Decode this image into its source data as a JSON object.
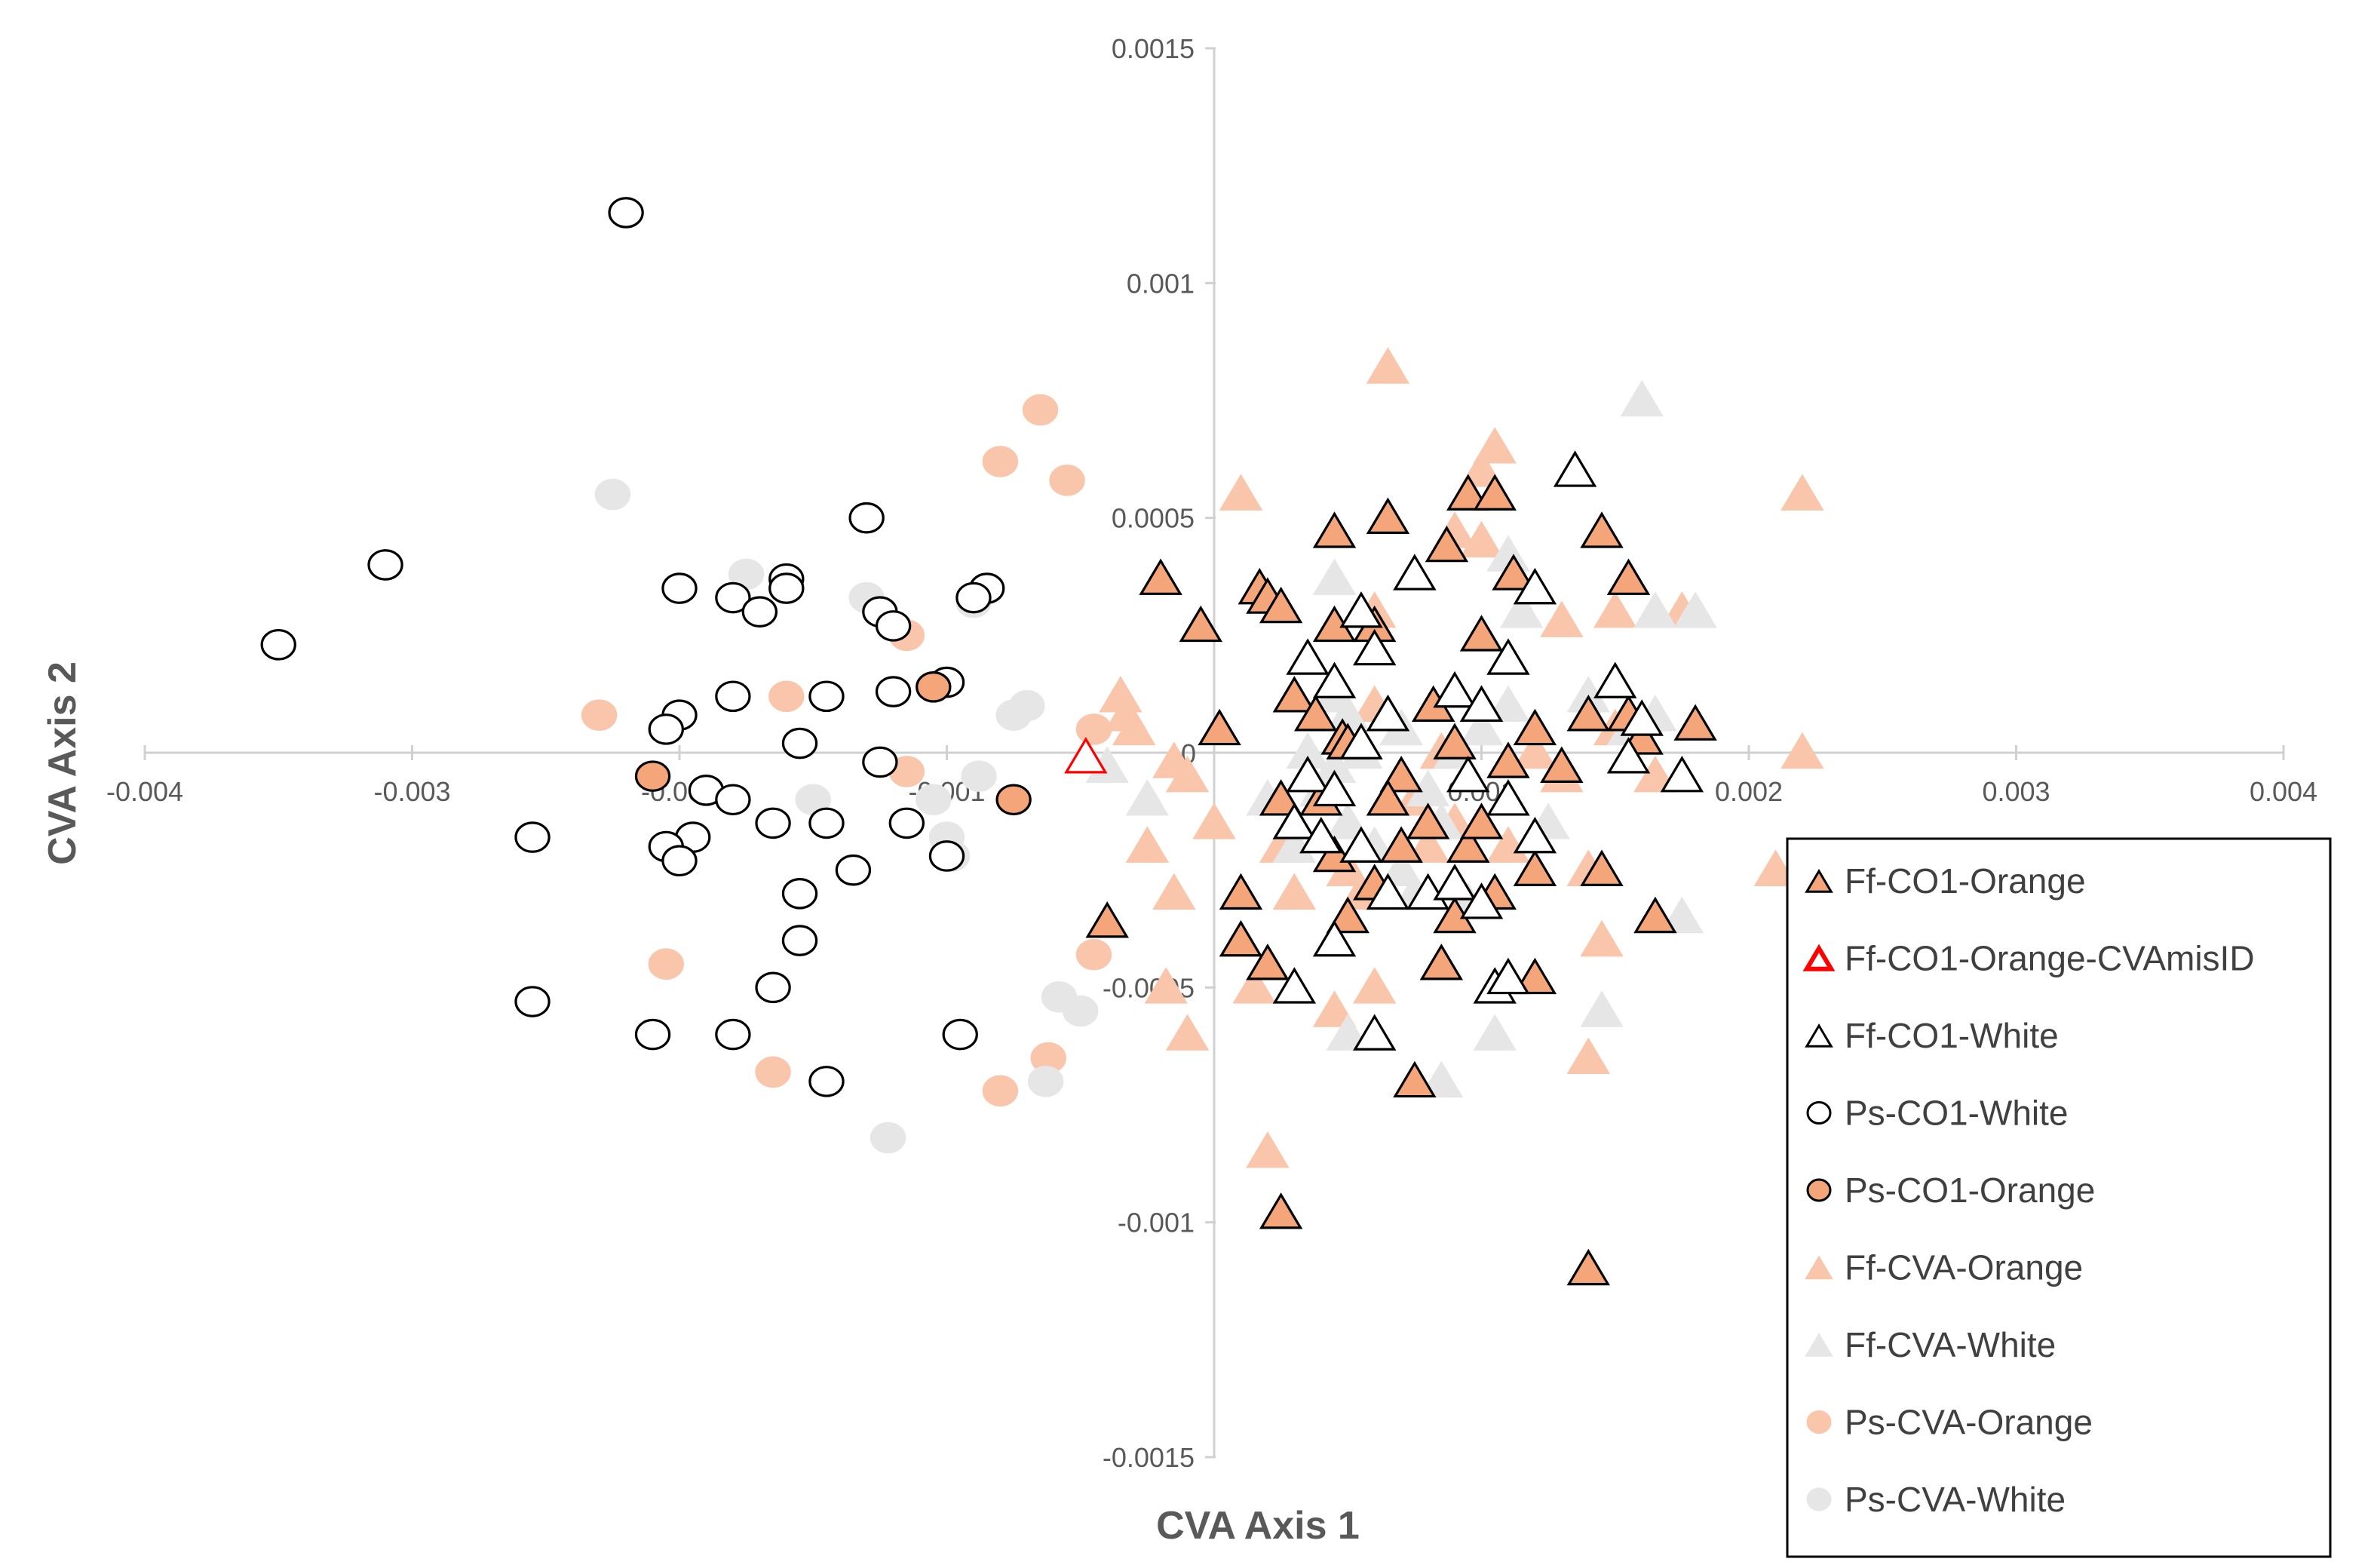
{
  "chart_data": {
    "type": "scatter",
    "title": "",
    "xlabel": "CVA Axis 1",
    "ylabel": "CVA Axis 2",
    "xlim": [
      -0.004,
      0.004
    ],
    "ylim": [
      -0.0015,
      0.0015
    ],
    "grid": false,
    "legend_position": "bottom-right",
    "xticks": [
      {
        "value": -0.004,
        "label": "-0.004"
      },
      {
        "value": -0.003,
        "label": "-0.003"
      },
      {
        "value": -0.002,
        "label": "-0.002"
      },
      {
        "value": -0.001,
        "label": "-0.001"
      },
      {
        "value": 0.001,
        "label": "0.001"
      },
      {
        "value": 0.002,
        "label": "0.002"
      },
      {
        "value": 0.003,
        "label": "0.003"
      },
      {
        "value": 0.004,
        "label": "0.004"
      }
    ],
    "yticks": [
      {
        "value": 0.0015,
        "label": "0.0015"
      },
      {
        "value": 0.001,
        "label": "0.001"
      },
      {
        "value": 0.0005,
        "label": "0.0005"
      },
      {
        "value": -0.0005,
        "label": "-0.0005"
      },
      {
        "value": -0.001,
        "label": "-0.001"
      },
      {
        "value": -0.0015,
        "label": "-0.0015"
      }
    ],
    "origin_label": "0",
    "series": [
      {
        "name": "Ff-CO1-Orange",
        "marker": "triangle",
        "fill": "#f4a67a",
        "stroke": "#000000",
        "points": [
          [
            -0.0002,
            0.00037
          ],
          [
            -5e-05,
            0.00027
          ],
          [
            2e-05,
            5e-05
          ],
          [
            0.00017,
            0.00035
          ],
          [
            0.0002,
            0.00033
          ],
          [
            0.00025,
            0.00031
          ],
          [
            0.00045,
            0.00047
          ],
          [
            0.00045,
            0.00027
          ],
          [
            0.0006,
            0.00027
          ],
          [
            0.00065,
            0.0005
          ],
          [
            0.00087,
            0.00044
          ],
          [
            0.00095,
            0.00055
          ],
          [
            0.00105,
            0.00055
          ],
          [
            0.001,
            0.00025
          ],
          [
            0.00112,
            0.00038
          ],
          [
            0.00145,
            0.00047
          ],
          [
            0.00155,
            0.00037
          ],
          [
            0.0003,
            0.00012
          ],
          [
            0.00038,
            8e-05
          ],
          [
            0.00048,
            3e-05
          ],
          [
            0.0005,
            2e-05
          ],
          [
            0.00065,
            8e-05
          ],
          [
            0.0007,
            -5e-05
          ],
          [
            0.00082,
            0.0001
          ],
          [
            0.0009,
            2e-05
          ],
          [
            0.001,
            0.0001
          ],
          [
            0.0011,
            -2e-05
          ],
          [
            0.0012,
            5e-05
          ],
          [
            0.0013,
            -3e-05
          ],
          [
            0.0014,
            8e-05
          ],
          [
            0.00155,
            8e-05
          ],
          [
            0.0016,
            3e-05
          ],
          [
            0.0018,
            6e-05
          ],
          [
            0.0001,
            -0.0003
          ],
          [
            0.0001,
            -0.0004
          ],
          [
            0.0002,
            -0.00045
          ],
          [
            0.00025,
            -0.0001
          ],
          [
            0.0003,
            -0.00015
          ],
          [
            0.0004,
            -0.0001
          ],
          [
            0.00045,
            -0.00022
          ],
          [
            0.0005,
            -0.00035
          ],
          [
            0.0006,
            -0.00028
          ],
          [
            0.00065,
            -0.0001
          ],
          [
            0.0007,
            -0.0002
          ],
          [
            0.0008,
            -0.00015
          ],
          [
            0.00085,
            -0.00045
          ],
          [
            0.0009,
            -0.00035
          ],
          [
            0.00095,
            -0.0002
          ],
          [
            0.001,
            -0.00015
          ],
          [
            0.00105,
            -0.0003
          ],
          [
            0.0012,
            -0.00025
          ],
          [
            0.00145,
            -0.00025
          ],
          [
            0.00165,
            -0.00035
          ],
          [
            -0.0004,
            -0.00036
          ],
          [
            0.00075,
            -0.0007
          ],
          [
            0.0012,
            -0.00048
          ],
          [
            0.00025,
            -0.00098
          ],
          [
            0.0014,
            -0.0011
          ]
        ]
      },
      {
        "name": "Ff-CO1-Orange-CVAmisID",
        "marker": "triangle",
        "fill": "#ffffff",
        "stroke": "#ff0000",
        "points": [
          [
            -0.00048,
            -1e-05
          ]
        ]
      },
      {
        "name": "Ff-CO1-White",
        "marker": "triangle",
        "fill": "#ffffff",
        "stroke": "#000000",
        "points": [
          [
            0.00035,
            0.0002
          ],
          [
            0.00045,
            0.00015
          ],
          [
            0.00055,
            2e-05
          ],
          [
            0.00055,
            0.0003
          ],
          [
            0.0006,
            0.00022
          ],
          [
            0.00065,
            8e-05
          ],
          [
            0.00075,
            0.00038
          ],
          [
            0.0009,
            0.00013
          ],
          [
            0.00095,
            -5e-05
          ],
          [
            0.001,
            0.0001
          ],
          [
            0.0011,
            0.0002
          ],
          [
            0.0012,
            0.00035
          ],
          [
            0.00135,
            0.0006
          ],
          [
            0.0015,
            0.00015
          ],
          [
            0.00155,
            -1e-05
          ],
          [
            0.0016,
            7e-05
          ],
          [
            0.00175,
            -5e-05
          ],
          [
            0.0003,
            -0.00015
          ],
          [
            0.00035,
            -5e-05
          ],
          [
            0.0004,
            -0.00018
          ],
          [
            0.00045,
            -8e-05
          ],
          [
            0.00055,
            -0.0002
          ],
          [
            0.00065,
            -0.0003
          ],
          [
            0.0008,
            -0.0003
          ],
          [
            0.0009,
            -0.00028
          ],
          [
            0.001,
            -0.00032
          ],
          [
            0.0011,
            -0.0001
          ],
          [
            0.0012,
            -0.00018
          ],
          [
            0.0003,
            -0.0005
          ],
          [
            0.00045,
            -0.0004
          ],
          [
            0.0006,
            -0.0006
          ],
          [
            0.00105,
            -0.0005
          ],
          [
            0.0011,
            -0.00048
          ]
        ]
      },
      {
        "name": "Ps-CO1-White",
        "marker": "circle",
        "fill": "#ffffff",
        "stroke": "#000000",
        "points": [
          [
            -0.0022,
            0.00115
          ],
          [
            -0.0031,
            0.0004
          ],
          [
            -0.0035,
            0.00023
          ],
          [
            -0.002,
            0.00035
          ],
          [
            -0.0018,
            0.00033
          ],
          [
            -0.0017,
            0.0003
          ],
          [
            -0.0016,
            0.00037
          ],
          [
            -0.0016,
            0.00035
          ],
          [
            -0.0013,
            0.0005
          ],
          [
            -0.00125,
            0.0003
          ],
          [
            -0.0012,
            0.00027
          ],
          [
            -0.00085,
            0.00035
          ],
          [
            -0.0009,
            0.00033
          ],
          [
            -0.001,
            0.00015
          ],
          [
            -0.0012,
            0.00013
          ],
          [
            -0.0018,
            0.00012
          ],
          [
            -0.00145,
            0.00012
          ],
          [
            -0.002,
            8e-05
          ],
          [
            -0.00205,
            5e-05
          ],
          [
            -0.00155,
            2e-05
          ],
          [
            -0.00125,
            -2e-05
          ],
          [
            -0.0019,
            -8e-05
          ],
          [
            -0.0018,
            -0.0001
          ],
          [
            -0.00195,
            -0.00018
          ],
          [
            -0.00205,
            -0.0002
          ],
          [
            -0.002,
            -0.00023
          ],
          [
            -0.00165,
            -0.00015
          ],
          [
            -0.00145,
            -0.00015
          ],
          [
            -0.00115,
            -0.00015
          ],
          [
            -0.001,
            -0.00022
          ],
          [
            -0.00255,
            -0.00018
          ],
          [
            -0.00135,
            -0.00025
          ],
          [
            -0.00155,
            -0.0003
          ],
          [
            -0.00155,
            -0.0004
          ],
          [
            -0.00165,
            -0.0005
          ],
          [
            -0.00255,
            -0.00053
          ],
          [
            -0.0021,
            -0.0006
          ],
          [
            -0.0018,
            -0.0006
          ],
          [
            -0.00145,
            -0.0007
          ],
          [
            -0.00095,
            -0.0006
          ]
        ]
      },
      {
        "name": "Ps-CO1-Orange",
        "marker": "circle",
        "fill": "#f4a67a",
        "stroke": "#000000",
        "points": [
          [
            -0.00105,
            0.00014
          ],
          [
            -0.0021,
            -5e-05
          ],
          [
            -0.00075,
            -0.0001
          ]
        ]
      },
      {
        "name": "Ff-CVA-Orange",
        "marker": "triangle",
        "fill": "#f9c6ab",
        "stroke": "#f9c6ab",
        "points": [
          [
            0.00065,
            0.00082
          ],
          [
            0.00105,
            0.00065
          ],
          [
            0.001,
            0.0006
          ],
          [
            0.0001,
            0.00055
          ],
          [
            0.00065,
            0.0005
          ],
          [
            0.001,
            0.00045
          ],
          [
            0.0022,
            0.00055
          ],
          [
            0.0009,
            0.00047
          ],
          [
            0.0006,
            0.0003
          ],
          [
            0.0013,
            0.00028
          ],
          [
            0.0015,
            0.0003
          ],
          [
            0.00175,
            0.0003
          ],
          [
            -0.00035,
            0.00012
          ],
          [
            -0.00033,
            8e-05
          ],
          [
            -0.0003,
            5e-05
          ],
          [
            -0.00015,
            -2e-05
          ],
          [
            -0.0001,
            -5e-05
          ],
          [
            0.0,
            -0.00015
          ],
          [
            -0.00025,
            -0.0002
          ],
          [
            -0.00015,
            -0.0003
          ],
          [
            0.00025,
            -0.0002
          ],
          [
            0.0003,
            -0.0003
          ],
          [
            0.00035,
            -5e-05
          ],
          [
            0.0004,
            -0.0001
          ],
          [
            0.0005,
            -0.00025
          ],
          [
            0.00055,
            -0.0003
          ],
          [
            0.0006,
            0.0001
          ],
          [
            0.0007,
            5e-05
          ],
          [
            0.00075,
            -0.0001
          ],
          [
            0.0008,
            -0.0002
          ],
          [
            0.00085,
            0.0
          ],
          [
            0.0009,
            -0.00015
          ],
          [
            0.001,
            5e-05
          ],
          [
            0.0011,
            -0.0002
          ],
          [
            0.0012,
            0.0
          ],
          [
            0.0013,
            -5e-05
          ],
          [
            0.0014,
            -0.00025
          ],
          [
            0.0015,
            5e-05
          ],
          [
            0.00165,
            -5e-05
          ],
          [
            0.0022,
            0.0
          ],
          [
            0.0021,
            -0.00025
          ],
          [
            -0.00018,
            -0.0005
          ],
          [
            -0.0001,
            -0.0006
          ],
          [
            0.00015,
            -0.0005
          ],
          [
            0.00045,
            -0.00055
          ],
          [
            0.0006,
            -0.0005
          ],
          [
            0.00085,
            -0.0007
          ],
          [
            0.0002,
            -0.00085
          ],
          [
            0.0014,
            -0.00065
          ],
          [
            0.00145,
            -0.0004
          ]
        ]
      },
      {
        "name": "Ff-CVA-White",
        "marker": "triangle",
        "fill": "#e6e6e6",
        "stroke": "#e6e6e6",
        "points": [
          [
            0.0016,
            0.00075
          ],
          [
            0.00045,
            0.00037
          ],
          [
            0.0011,
            0.00042
          ],
          [
            0.00115,
            0.0003
          ],
          [
            0.00165,
            0.0003
          ],
          [
            0.0018,
            0.0003
          ],
          [
            0.00045,
            0.00012
          ],
          [
            0.0005,
            8e-05
          ],
          [
            0.00035,
            0.0
          ],
          [
            0.00045,
            -3e-05
          ],
          [
            0.0004,
            -8e-05
          ],
          [
            0.00055,
            0.0
          ],
          [
            0.0007,
            5e-05
          ],
          [
            0.0008,
            -8e-05
          ],
          [
            0.0009,
            0.0
          ],
          [
            0.001,
            5e-05
          ],
          [
            0.0011,
            0.0001
          ],
          [
            0.0014,
            0.00012
          ],
          [
            0.00155,
            5e-05
          ],
          [
            0.00165,
            8e-05
          ],
          [
            -0.0004,
            -3e-05
          ],
          [
            -0.00025,
            -0.0001
          ],
          [
            0.0002,
            -0.0001
          ],
          [
            0.0003,
            -0.0002
          ],
          [
            0.0005,
            -0.00015
          ],
          [
            0.0006,
            -0.0002
          ],
          [
            0.0007,
            -0.00025
          ],
          [
            0.00075,
            -0.0003
          ],
          [
            0.00085,
            -0.00015
          ],
          [
            0.00095,
            -0.00032
          ],
          [
            0.00105,
            -0.0003
          ],
          [
            0.00125,
            -0.00015
          ],
          [
            0.00175,
            -0.00035
          ],
          [
            0.0005,
            -0.0006
          ],
          [
            0.00105,
            -0.0006
          ],
          [
            0.00145,
            -0.00055
          ],
          [
            0.00085,
            -0.0007
          ]
        ]
      },
      {
        "name": "Ps-CVA-Orange",
        "marker": "circle",
        "fill": "#f9c6ab",
        "stroke": "#f9c6ab",
        "points": [
          [
            -0.00065,
            0.00073
          ],
          [
            -0.0008,
            0.00062
          ],
          [
            -0.00055,
            0.00058
          ],
          [
            -0.00115,
            0.00025
          ],
          [
            -0.0023,
            8e-05
          ],
          [
            -0.0016,
            0.00012
          ],
          [
            -0.00115,
            -4e-05
          ],
          [
            -0.00045,
            5e-05
          ],
          [
            -0.00205,
            -0.00045
          ],
          [
            -0.00045,
            -0.00043
          ],
          [
            -0.00165,
            -0.00068
          ],
          [
            -0.0008,
            -0.00072
          ],
          [
            -0.00062,
            -0.00065
          ]
        ]
      },
      {
        "name": "Ps-CVA-White",
        "marker": "circle",
        "fill": "#e6e6e6",
        "stroke": "#e6e6e6",
        "points": [
          [
            -0.00225,
            0.00055
          ],
          [
            -0.00175,
            0.00038
          ],
          [
            -0.0013,
            0.00033
          ],
          [
            -0.0009,
            0.00032
          ],
          [
            -0.0007,
            0.0001
          ],
          [
            -0.00075,
            8e-05
          ],
          [
            -0.00105,
            -0.0001
          ],
          [
            -0.00088,
            -5e-05
          ],
          [
            -0.001,
            -0.00018
          ],
          [
            -0.00098,
            -0.00022
          ],
          [
            -0.0015,
            -0.0001
          ],
          [
            -0.00058,
            -0.00052
          ],
          [
            -0.0005,
            -0.00055
          ],
          [
            -0.00063,
            -0.0007
          ],
          [
            -0.00122,
            -0.00082
          ]
        ]
      }
    ]
  }
}
